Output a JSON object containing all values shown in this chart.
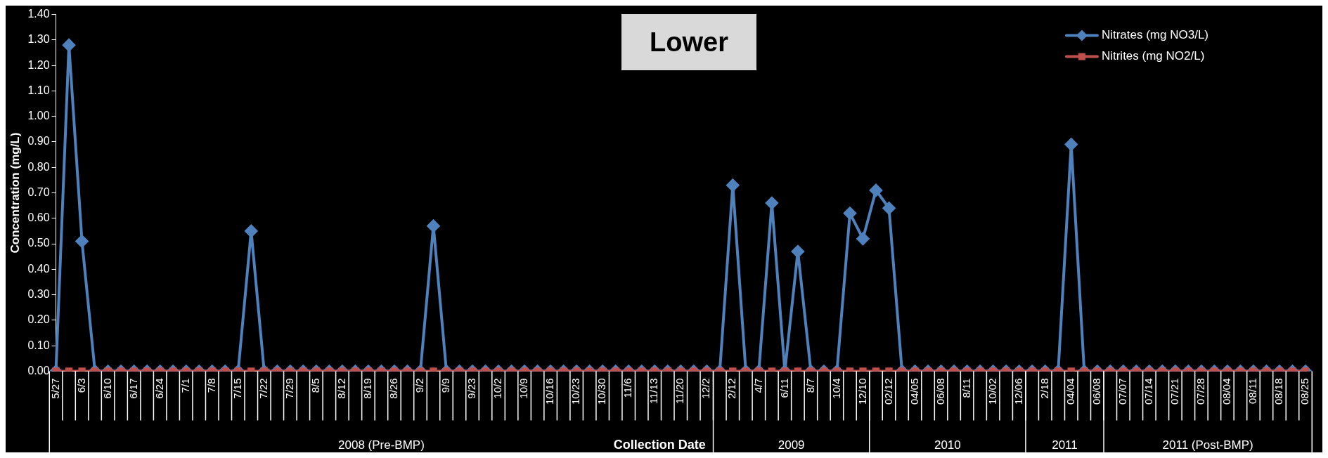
{
  "chart_data": {
    "type": "line",
    "title": "Lower",
    "xlabel": "Collection Date",
    "ylabel": "Concentration (mg/L)",
    "categories": [
      "5/27",
      null,
      "6/3",
      null,
      "6/10",
      null,
      "6/17",
      null,
      "6/24",
      null,
      "7/1",
      null,
      "7/8",
      null,
      "7/15",
      null,
      "7/22",
      null,
      "7/29",
      null,
      "8/5",
      null,
      "8/12",
      null,
      "8/19",
      null,
      "8/26",
      null,
      "9/2",
      null,
      "9/9",
      null,
      "9/23",
      null,
      "10/2",
      null,
      "10/9",
      null,
      "10/16",
      null,
      "10/23",
      null,
      "10/30",
      null,
      "11/6",
      null,
      "11/13",
      null,
      "11/20",
      null,
      "12/2",
      null,
      "2/12",
      null,
      "4/7",
      null,
      "6/11",
      null,
      "8/7",
      null,
      "10/4",
      null,
      "12/10",
      null,
      "02/12",
      null,
      "04/05",
      null,
      "06/08",
      null,
      "8/11",
      null,
      "10/02",
      null,
      "12/06",
      null,
      "2/18",
      null,
      "04/04",
      null,
      "06/08",
      null,
      "07/07",
      null,
      "07/14",
      null,
      "07/21",
      null,
      "07/28",
      null,
      "08/04",
      null,
      "08/11",
      null,
      "08/18",
      null,
      "08/25"
    ],
    "series": [
      {
        "name": "Nitrates (mg NO3/L)",
        "color": "#4f81bd",
        "marker": "diamond",
        "values": [
          0,
          1.28,
          0.51,
          0,
          0,
          0,
          0,
          0,
          0,
          0,
          0,
          0,
          0,
          0,
          0,
          0.55,
          0,
          0,
          0,
          0,
          0,
          0,
          0,
          0,
          0,
          0,
          0,
          0,
          0,
          0.57,
          0,
          0,
          0,
          0,
          0,
          0,
          0,
          0,
          0,
          0,
          0,
          0,
          0,
          0,
          0,
          0,
          0,
          0,
          0,
          0,
          0,
          0,
          0.73,
          0,
          0,
          0.66,
          0,
          0.47,
          0,
          0,
          0,
          0.62,
          0.52,
          0.71,
          0.64,
          0,
          0,
          0,
          0,
          0,
          0,
          0,
          0,
          0,
          0,
          0,
          0,
          0,
          0.89,
          0,
          0,
          0,
          0,
          0,
          0,
          0,
          0,
          0,
          0,
          0,
          0,
          0,
          0,
          0,
          0,
          0,
          0
        ]
      },
      {
        "name": "Nitrites (mg NO2/L)",
        "color": "#c0504d",
        "marker": "square",
        "values": [
          0,
          0,
          0,
          0,
          0,
          0,
          0,
          0,
          0,
          0,
          0,
          0,
          0,
          0,
          0,
          0,
          0,
          0,
          0,
          0,
          0,
          0,
          0,
          0,
          0,
          0,
          0,
          0,
          0,
          0,
          0,
          0,
          0,
          0,
          0,
          0,
          0,
          0,
          0,
          0,
          0,
          0,
          0,
          0,
          0,
          0,
          0,
          0,
          0,
          0,
          0,
          0,
          0,
          0,
          0,
          0,
          0,
          0,
          0,
          0,
          0,
          0,
          0,
          0,
          0,
          0,
          0,
          0,
          0,
          0,
          0,
          0,
          0,
          0,
          0,
          0,
          0,
          0,
          0,
          0,
          0,
          0,
          0,
          0,
          0,
          0,
          0,
          0,
          0,
          0,
          0,
          0,
          0,
          0,
          0,
          0,
          0
        ]
      }
    ],
    "ylim": [
      0,
      1.4
    ],
    "yticks": [
      {
        "value": 0,
        "label": "0.00"
      },
      {
        "value": 0.1,
        "label": "0.10"
      },
      {
        "value": 0.2,
        "label": "0.20"
      },
      {
        "value": 0.3,
        "label": "0.30"
      },
      {
        "value": 0.4,
        "label": "0.40"
      },
      {
        "value": 0.5,
        "label": "0.50"
      },
      {
        "value": 0.6,
        "label": "0.60"
      },
      {
        "value": 0.7,
        "label": "0.70"
      },
      {
        "value": 0.8,
        "label": "0.80"
      },
      {
        "value": 0.9,
        "label": "0.90"
      },
      {
        "value": 1,
        "label": "1.00"
      },
      {
        "value": 1.1,
        "label": "1.10"
      },
      {
        "value": 1.2,
        "label": "1.20"
      },
      {
        "value": 1.3,
        "label": "1.30"
      },
      {
        "value": 1.4,
        "label": "1.40"
      }
    ],
    "annotations": [
      "2008 (Pre-BMP)",
      "2009",
      "2010",
      "2011",
      "2011 (Post-BMP)"
    ],
    "legend": "top right",
    "line_style": "solid"
  }
}
